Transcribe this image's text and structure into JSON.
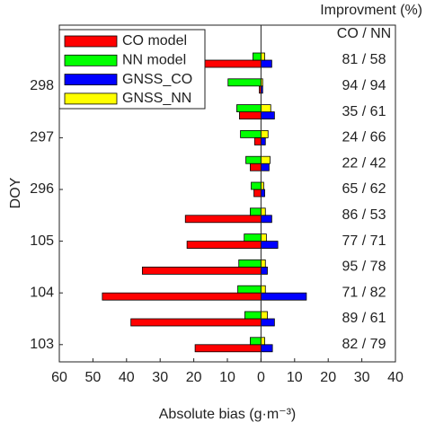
{
  "chart_data": {
    "type": "hbar_grouped",
    "xlabel": "Absolute bias (g·m⁻³)",
    "ylabel": "DOY",
    "categories": [
      null,
      "298",
      null,
      "297",
      null,
      "296",
      null,
      "105",
      null,
      "104",
      null,
      "103"
    ],
    "series": [
      {
        "name": "CO model",
        "color": "#ff0000",
        "values": [
          -17,
          -0.5,
          -6.4,
          -1.9,
          -3.2,
          -2.1,
          -22.5,
          -22,
          -35.3,
          -47.2,
          -38.7,
          -19.6
        ]
      },
      {
        "name": "NN model",
        "color": "#00ff00",
        "values": [
          -2.4,
          -9.8,
          -7.2,
          -6.1,
          -4.5,
          -2.9,
          -3.2,
          -5,
          -6.6,
          -6.9,
          -4.8,
          -3.2
        ]
      },
      {
        "name": "GNSS_CO",
        "color": "#0000ff",
        "values": [
          3.2,
          0.5,
          4,
          1.3,
          2.4,
          1.1,
          3.2,
          5,
          1.9,
          13.5,
          4,
          3.4
        ]
      },
      {
        "name": "GNSS_NN",
        "color": "#ffff00",
        "values": [
          1.1,
          0.5,
          2.9,
          2.1,
          2.7,
          0.8,
          1.3,
          1.6,
          1.3,
          1.3,
          1.9,
          1.1
        ]
      }
    ],
    "xlim": [
      -60,
      40
    ],
    "xticks": [
      {
        "value": -60,
        "label": "60"
      },
      {
        "value": -50,
        "label": "50"
      },
      {
        "value": -40,
        "label": "40"
      },
      {
        "value": -30,
        "label": "30"
      },
      {
        "value": -20,
        "label": "20"
      },
      {
        "value": -10,
        "label": "10"
      },
      0,
      10,
      20,
      30,
      40
    ],
    "legend": "upper left",
    "annotations": {
      "header": "Improvment (%)",
      "subheader": "CO / NN",
      "rows": [
        "81 / 58",
        "94 / 94",
        "35 / 61",
        "24 / 66",
        "22 / 42",
        "65 / 62",
        "86 / 53",
        "77 / 71",
        "95 / 78",
        "71 / 82",
        "89 / 61",
        "82 / 79"
      ]
    }
  }
}
